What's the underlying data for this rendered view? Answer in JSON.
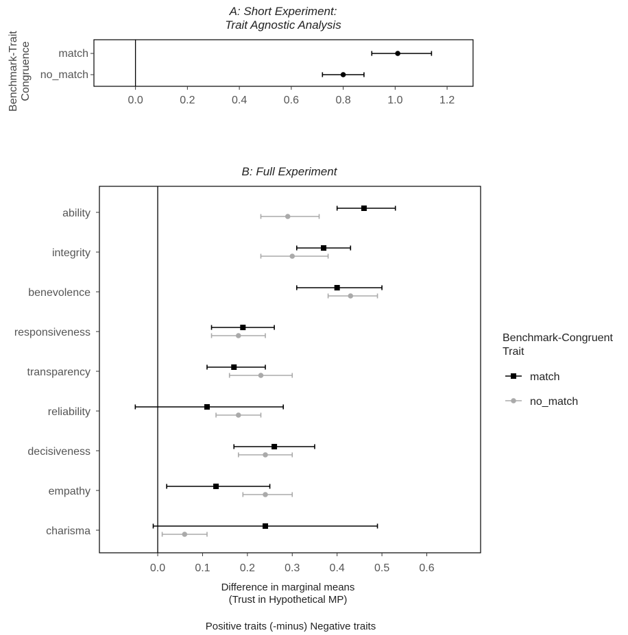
{
  "chart_data": [
    {
      "type": "dot-whisker",
      "title": [
        "A: Short Experiment:",
        "Trait Agnostic Analysis"
      ],
      "ylabel": [
        "Benchmark-Trait",
        "Congruence"
      ],
      "xlabel": "",
      "xlim": [
        -0.16,
        1.3
      ],
      "xticks": [
        0.0,
        0.2,
        0.4,
        0.6,
        0.8,
        1.0,
        1.2
      ],
      "xtick_labels": [
        "0.0",
        "0.2",
        "0.4",
        "0.6",
        "0.8",
        "1.0",
        "1.2"
      ],
      "reference_line": 0,
      "grid": false,
      "categories": [
        "match",
        "no_match"
      ],
      "estimates": [
        {
          "category": "match",
          "value": 1.01,
          "low": 0.91,
          "high": 1.14
        },
        {
          "category": "no_match",
          "value": 0.8,
          "low": 0.72,
          "high": 0.88
        }
      ],
      "color": "#000000"
    },
    {
      "type": "dot-whisker",
      "title": [
        "B: Full Experiment"
      ],
      "ylabel": [],
      "xlabel": [
        "Difference in marginal means",
        "(Trust in Hypothetical MP)"
      ],
      "caption": "Positive traits (-minus) Negative traits",
      "xlim": [
        -0.13,
        0.72
      ],
      "xticks": [
        0.0,
        0.1,
        0.2,
        0.3,
        0.4,
        0.5,
        0.6
      ],
      "xtick_labels": [
        "0.0",
        "0.1",
        "0.2",
        "0.3",
        "0.4",
        "0.5",
        "0.6"
      ],
      "reference_line": 0,
      "grid": false,
      "categories": [
        "ability",
        "integrity",
        "benevolence",
        "responsiveness",
        "transparency",
        "reliability",
        "decisiveness",
        "empathy",
        "charisma"
      ],
      "legend": {
        "title": [
          "Benchmark-Congruent",
          " Trait"
        ],
        "placement": "right"
      },
      "series": [
        {
          "name": "match",
          "color": "#000000",
          "marker": "square",
          "values": [
            0.46,
            0.37,
            0.4,
            0.19,
            0.17,
            0.11,
            0.26,
            0.13,
            0.24
          ],
          "low": [
            0.4,
            0.31,
            0.31,
            0.12,
            0.11,
            -0.05,
            0.17,
            0.02,
            -0.01
          ],
          "high": [
            0.53,
            0.43,
            0.5,
            0.26,
            0.24,
            0.28,
            0.35,
            0.25,
            0.49
          ]
        },
        {
          "name": "no_match",
          "color": "#aaaaaa",
          "marker": "circle",
          "values": [
            0.29,
            0.3,
            0.43,
            0.18,
            0.23,
            0.18,
            0.24,
            0.24,
            0.06
          ],
          "low": [
            0.23,
            0.23,
            0.38,
            0.12,
            0.16,
            0.13,
            0.18,
            0.19,
            0.01
          ],
          "high": [
            0.36,
            0.38,
            0.49,
            0.24,
            0.3,
            0.23,
            0.3,
            0.3,
            0.11
          ]
        }
      ]
    }
  ]
}
